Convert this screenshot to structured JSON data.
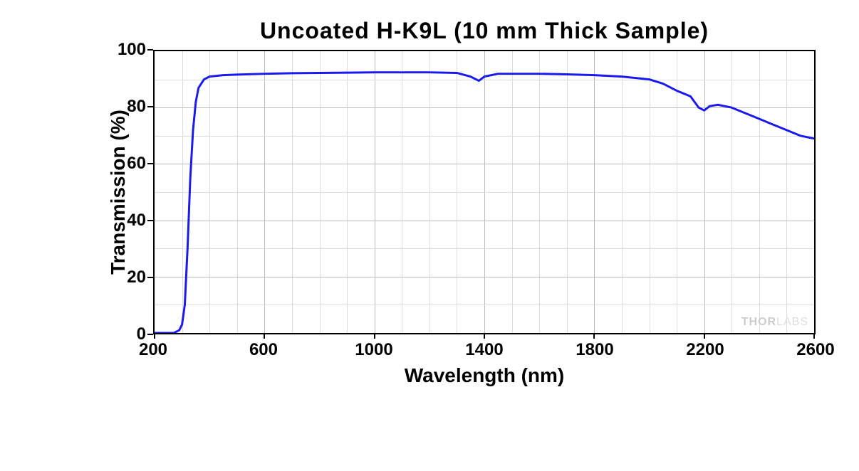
{
  "chart": {
    "type": "line",
    "title": "Uncoated  H-K9L  (10 mm Thick Sample)",
    "xlabel": "Wavelength (nm)",
    "ylabel": "Transmission (%)",
    "xlim": [
      200,
      2600
    ],
    "ylim": [
      0,
      100
    ],
    "xticks": [
      200,
      600,
      1000,
      1400,
      1800,
      2200,
      2600
    ],
    "yticks": [
      0,
      20,
      40,
      60,
      80,
      100
    ],
    "x_minor_step": 100,
    "y_minor_step": 10,
    "grid_major_color": "#bbbbbb",
    "grid_minor_color": "#dddddd",
    "background_color": "#ffffff",
    "border_color": "#000000",
    "border_width": 2.5,
    "line_color": "#1a1aee",
    "line_width": 3,
    "title_fontsize": 32,
    "label_fontsize": 28,
    "tick_fontsize": 24,
    "watermark_text1": "THOR",
    "watermark_text2": "LABS",
    "watermark_color": "#cccccc",
    "data": {
      "x": [
        200,
        250,
        270,
        290,
        300,
        310,
        320,
        330,
        340,
        350,
        360,
        380,
        400,
        450,
        500,
        600,
        700,
        800,
        900,
        1000,
        1100,
        1200,
        1300,
        1350,
        1380,
        1400,
        1450,
        1500,
        1600,
        1700,
        1800,
        1900,
        2000,
        2050,
        2100,
        2150,
        2180,
        2200,
        2220,
        2250,
        2300,
        2350,
        2400,
        2450,
        2500,
        2550,
        2600
      ],
      "y": [
        0,
        0,
        0,
        1,
        3,
        10,
        30,
        55,
        72,
        82,
        87,
        90,
        91,
        91.5,
        91.7,
        92,
        92.2,
        92.3,
        92.4,
        92.5,
        92.5,
        92.5,
        92.3,
        91,
        89.5,
        91,
        92,
        92,
        92,
        91.8,
        91.5,
        91,
        90,
        88.5,
        86,
        84,
        80,
        79,
        80.5,
        81,
        80,
        78,
        76,
        74,
        72,
        70,
        69
      ]
    }
  }
}
